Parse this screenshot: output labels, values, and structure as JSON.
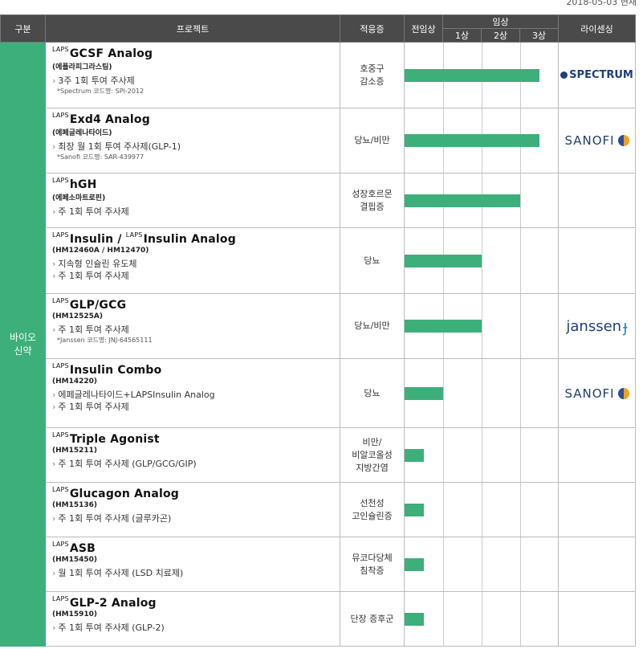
{
  "date": "2018-05-03 현재",
  "header": {
    "category": "구분",
    "project": "프로젝트",
    "indication": "적응증",
    "preclinical": "전임상",
    "clinical": "임상",
    "phase1": "1상",
    "phase2": "2상",
    "phase3": "3상",
    "licensing": "라이센싱"
  },
  "category_label_1": "바이오",
  "category_label_2": "신약",
  "rows": [
    {
      "prefix": "LAPS",
      "title": "GCSF Analog",
      "code": "(에플라피그라스팀)",
      "desc": [
        "3주 1회 투여 주사제"
      ],
      "note": "*Spectrum 코드명: SPI-2012",
      "indication": [
        "호중구",
        "감소증"
      ],
      "progress": 3.5,
      "license": "Spectrum"
    },
    {
      "prefix": "LAPS",
      "title": "Exd4 Analog",
      "code": "(에페글레나타이드)",
      "desc": [
        "최장 월 1회 투여 주사제(GLP-1)"
      ],
      "note": "*Sanofi 코드명: SAR-439977",
      "indication": [
        "당뇨/비만"
      ],
      "progress": 3.5,
      "license": "Sanofi"
    },
    {
      "prefix": "LAPS",
      "title": "hGH",
      "code": "(에페소마트로핀)",
      "desc": [
        "주 1회 투여 주사제"
      ],
      "note": "",
      "indication": [
        "성장호르몬",
        "결핍증"
      ],
      "progress": 3.0,
      "license": ""
    },
    {
      "prefix": "LAPS",
      "title": "Insulin / ",
      "prefix2": "LAPS",
      "title2": "Insulin Analog",
      "code": "(HM12460A / HM12470)",
      "desc": [
        "지속형 인슐린 유도체",
        "주 1회 투여 주사제"
      ],
      "note": "",
      "indication": [
        "당뇨"
      ],
      "progress": 2.0,
      "license": ""
    },
    {
      "prefix": "LAPS",
      "title": "GLP/GCG",
      "code": "(HM12525A)",
      "desc": [
        "주 1회 투여 주사제"
      ],
      "note": "*Janssen 코드명: JNJ-64565111",
      "indication": [
        "당뇨/비만"
      ],
      "progress": 2.0,
      "license": "Janssen"
    },
    {
      "prefix": "LAPS",
      "title": "Insulin Combo",
      "code": "(HM14220)",
      "desc": [
        "에페글레나타이드+LAPSInsulin Analog",
        "주 1회 투여 주사제"
      ],
      "note": "",
      "indication": [
        "당뇨"
      ],
      "progress": 1.0,
      "license": "Sanofi"
    },
    {
      "prefix": "LAPS",
      "title": "Triple Agonist",
      "code": "(HM15211)",
      "desc": [
        "주 1회 투여 주사제 (GLP/GCG/GIP)"
      ],
      "note": "",
      "indication": [
        "비만/",
        "비알코올성",
        "지방간염"
      ],
      "progress": 0.5,
      "license": ""
    },
    {
      "prefix": "LAPS",
      "title": "Glucagon Analog",
      "code": "(HM15136)",
      "desc": [
        "주 1회 투여 주사제 (글루카곤)"
      ],
      "note": "",
      "indication": [
        "선천성",
        "고인슐린증"
      ],
      "progress": 0.5,
      "license": ""
    },
    {
      "prefix": "LAPS",
      "title": "ASB",
      "code": "(HM15450)",
      "desc": [
        "월 1회 투여 주사제 (LSD 치료제)"
      ],
      "note": "",
      "indication": [
        "뮤코다당체",
        "침착증"
      ],
      "progress": 0.5,
      "license": ""
    },
    {
      "prefix": "LAPS",
      "title": "GLP-2 Analog",
      "code": "(HM15910)",
      "desc": [
        "주 1회 투여 주사제 (GLP-2)"
      ],
      "note": "",
      "indication": [
        "단장 증후군"
      ],
      "progress": 0.5,
      "license": ""
    }
  ],
  "colors": {
    "accent": "#3daf7a",
    "header": "#4a4a4a"
  }
}
